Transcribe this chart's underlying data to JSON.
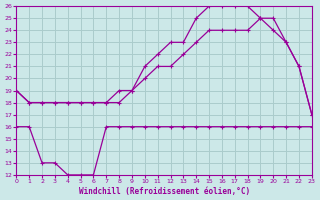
{
  "xlabel": "Windchill (Refroidissement éolien,°C)",
  "bg_color": "#cce8e8",
  "grid_color": "#aacccc",
  "line_color": "#990099",
  "x_min": 0,
  "x_max": 23,
  "y_min": 12,
  "y_max": 26,
  "series1_x": [
    0,
    1,
    2,
    3,
    4,
    5,
    6,
    7,
    8,
    9,
    10,
    11,
    12,
    13,
    14,
    15,
    16,
    17,
    18,
    19,
    20,
    21,
    22,
    23
  ],
  "series1_y": [
    19,
    18,
    18,
    18,
    18,
    18,
    18,
    18,
    19,
    19,
    21,
    22,
    23,
    23,
    25,
    26,
    26,
    26,
    26,
    25,
    25,
    23,
    21,
    17
  ],
  "series2_x": [
    0,
    1,
    2,
    3,
    4,
    5,
    6,
    7,
    8,
    9,
    10,
    11,
    12,
    13,
    14,
    15,
    16,
    17,
    18,
    19,
    20,
    21,
    22,
    23
  ],
  "series2_y": [
    19,
    18,
    18,
    18,
    18,
    18,
    18,
    18,
    18,
    19,
    20,
    21,
    21,
    22,
    23,
    24,
    24,
    24,
    24,
    25,
    24,
    23,
    21,
    17
  ],
  "series3_x": [
    0,
    1,
    2,
    3,
    4,
    5,
    6,
    7,
    8,
    9,
    10,
    11,
    12,
    13,
    14,
    15,
    16,
    17,
    18,
    19,
    20,
    21,
    22,
    23
  ],
  "series3_y": [
    16,
    16,
    13,
    13,
    12,
    12,
    12,
    16,
    16,
    16,
    16,
    16,
    16,
    16,
    16,
    16,
    16,
    16,
    16,
    16,
    16,
    16,
    16,
    16
  ]
}
